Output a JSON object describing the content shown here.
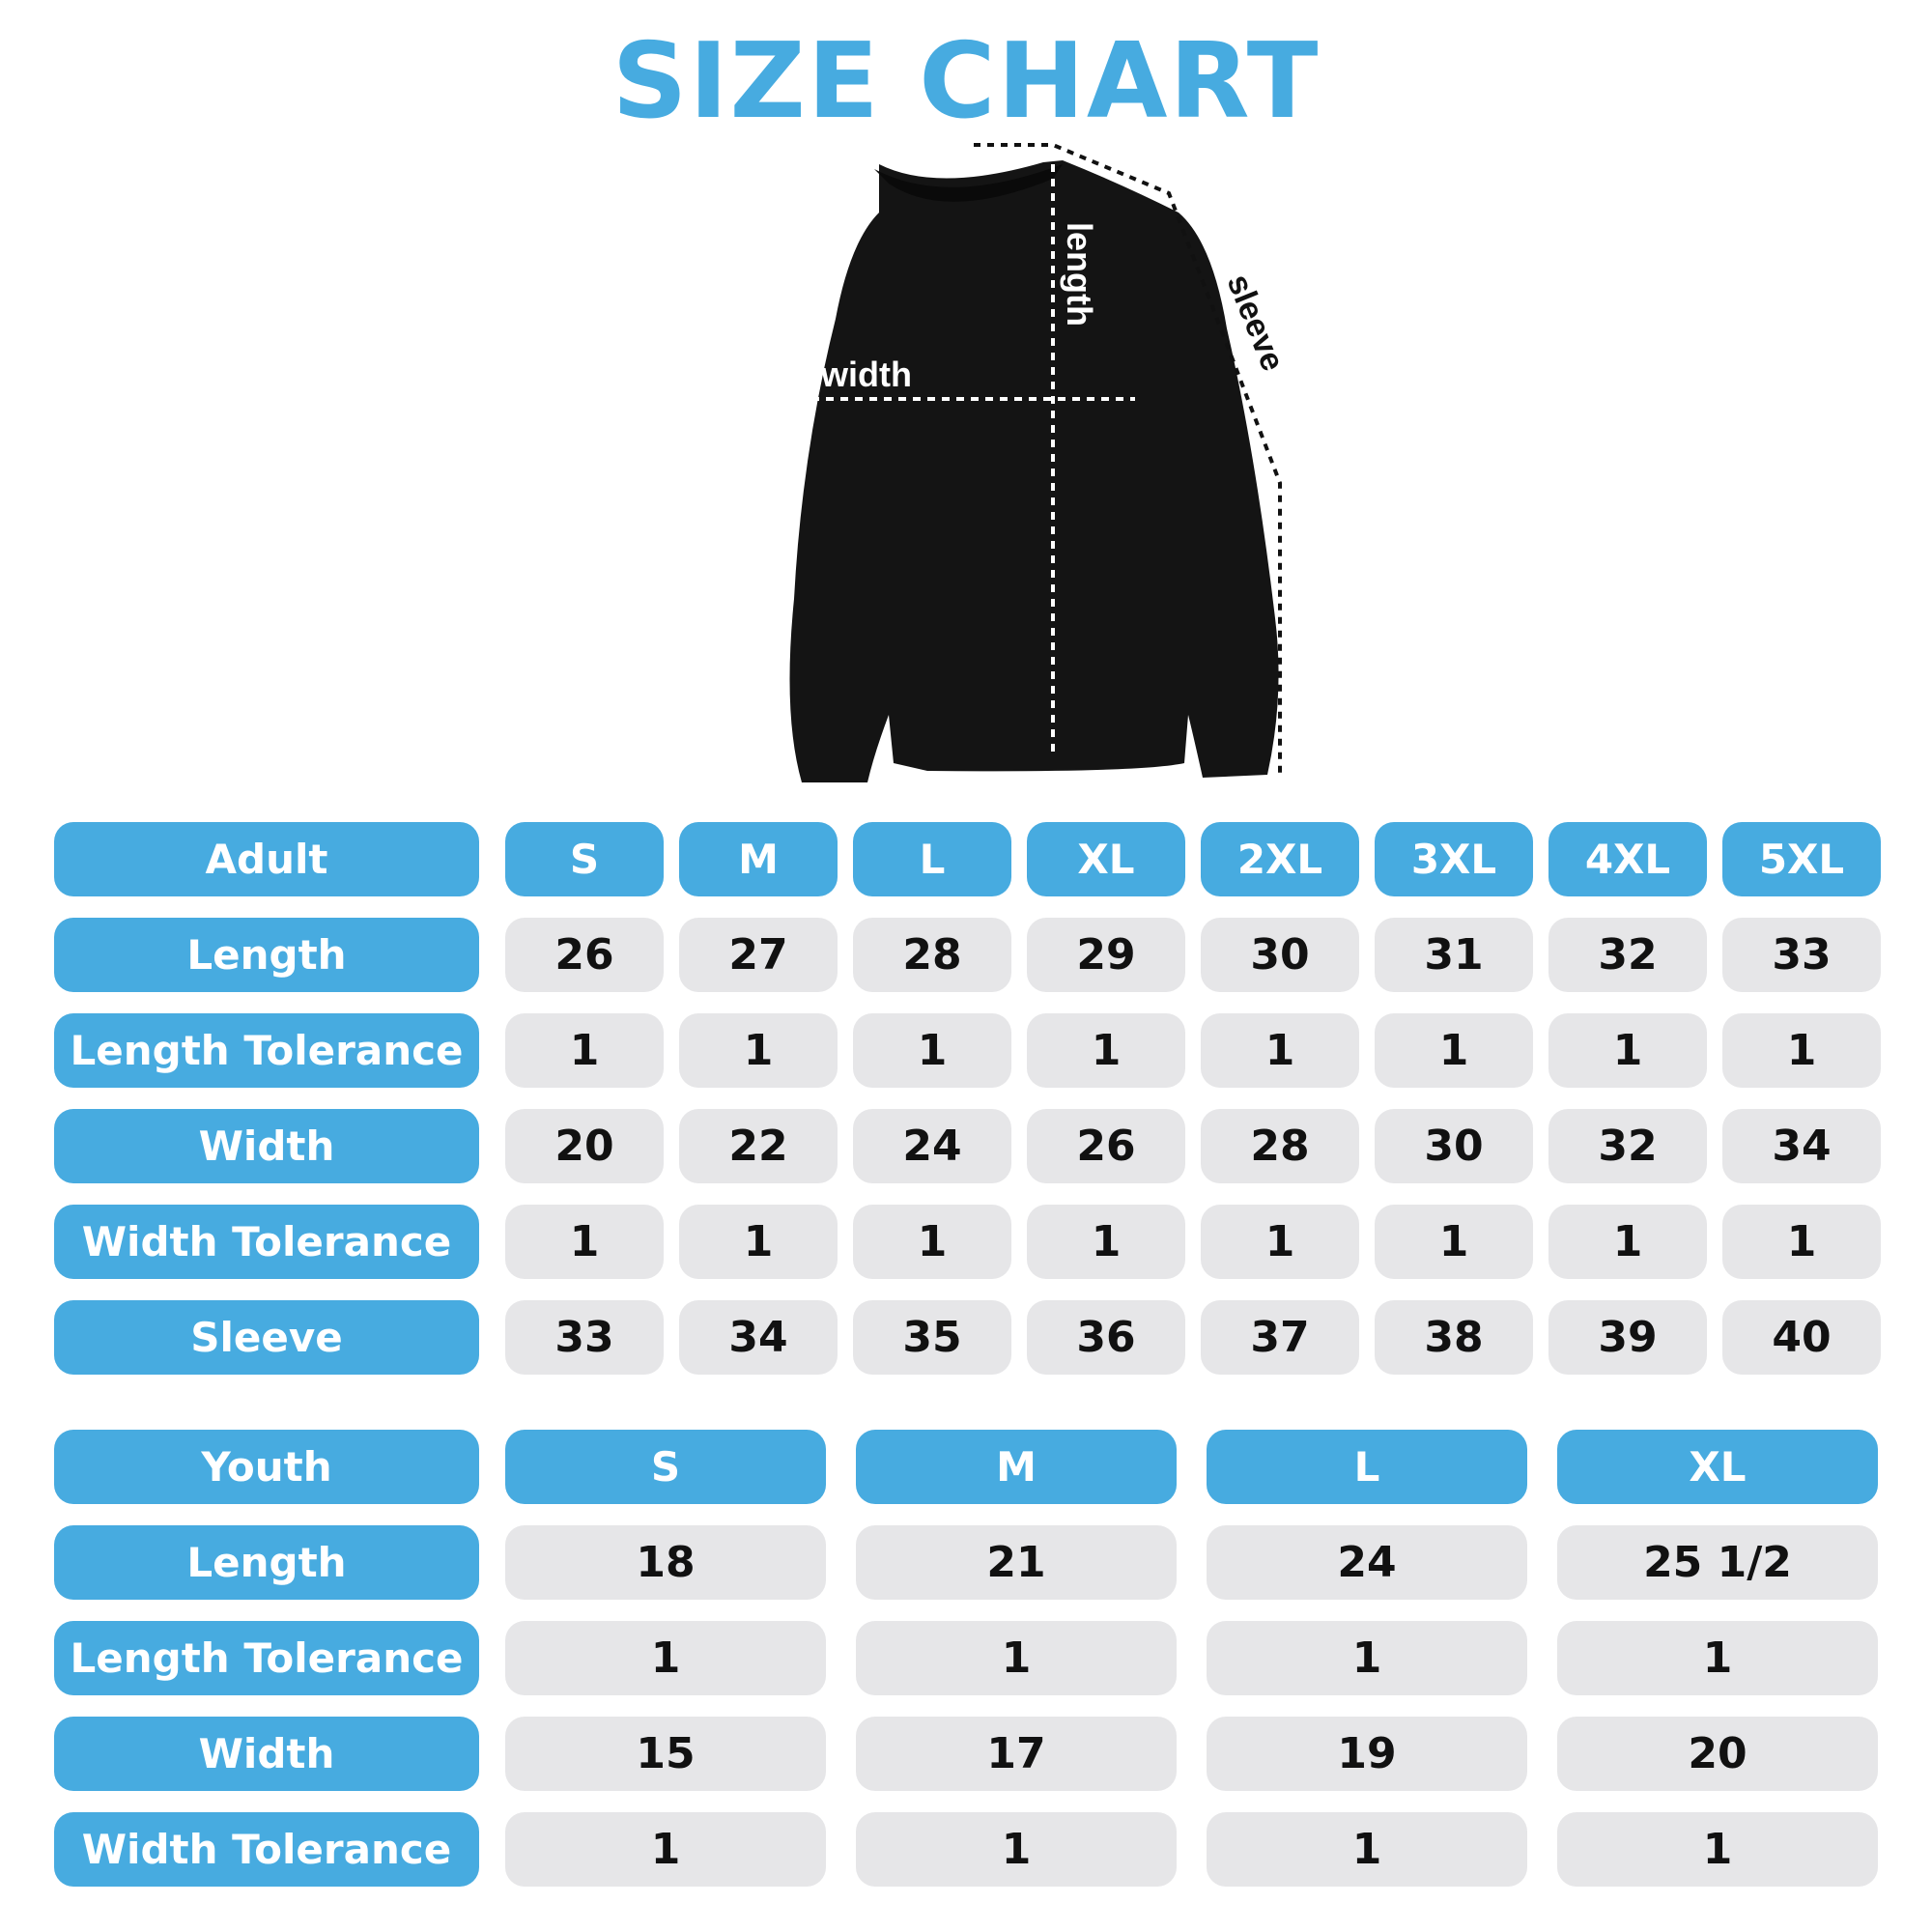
{
  "title": "SIZE CHART",
  "colors": {
    "accent": "#47abe0",
    "cell_bg": "#e6e6e8",
    "garment": "#141414"
  },
  "diagram": {
    "length_label": "length",
    "width_label": "width",
    "sleeve_label": "sleeve"
  },
  "adult": {
    "header": "Adult",
    "sizes": [
      "S",
      "M",
      "L",
      "XL",
      "2XL",
      "3XL",
      "4XL",
      "5XL"
    ],
    "rows": [
      {
        "label": "Length",
        "values": [
          "26",
          "27",
          "28",
          "29",
          "30",
          "31",
          "32",
          "33"
        ]
      },
      {
        "label": "Length Tolerance",
        "values": [
          "1",
          "1",
          "1",
          "1",
          "1",
          "1",
          "1",
          "1"
        ]
      },
      {
        "label": "Width",
        "values": [
          "20",
          "22",
          "24",
          "26",
          "28",
          "30",
          "32",
          "34"
        ]
      },
      {
        "label": "Width Tolerance",
        "values": [
          "1",
          "1",
          "1",
          "1",
          "1",
          "1",
          "1",
          "1"
        ]
      },
      {
        "label": "Sleeve",
        "values": [
          "33",
          "34",
          "35",
          "36",
          "37",
          "38",
          "39",
          "40"
        ]
      }
    ]
  },
  "youth": {
    "header": "Youth",
    "sizes": [
      "S",
      "M",
      "L",
      "XL"
    ],
    "rows": [
      {
        "label": "Length",
        "values": [
          "18",
          "21",
          "24",
          "25 1/2"
        ]
      },
      {
        "label": "Length Tolerance",
        "values": [
          "1",
          "1",
          "1",
          "1"
        ]
      },
      {
        "label": "Width",
        "values": [
          "15",
          "17",
          "19",
          "20"
        ]
      },
      {
        "label": "Width Tolerance",
        "values": [
          "1",
          "1",
          "1",
          "1"
        ]
      }
    ]
  }
}
